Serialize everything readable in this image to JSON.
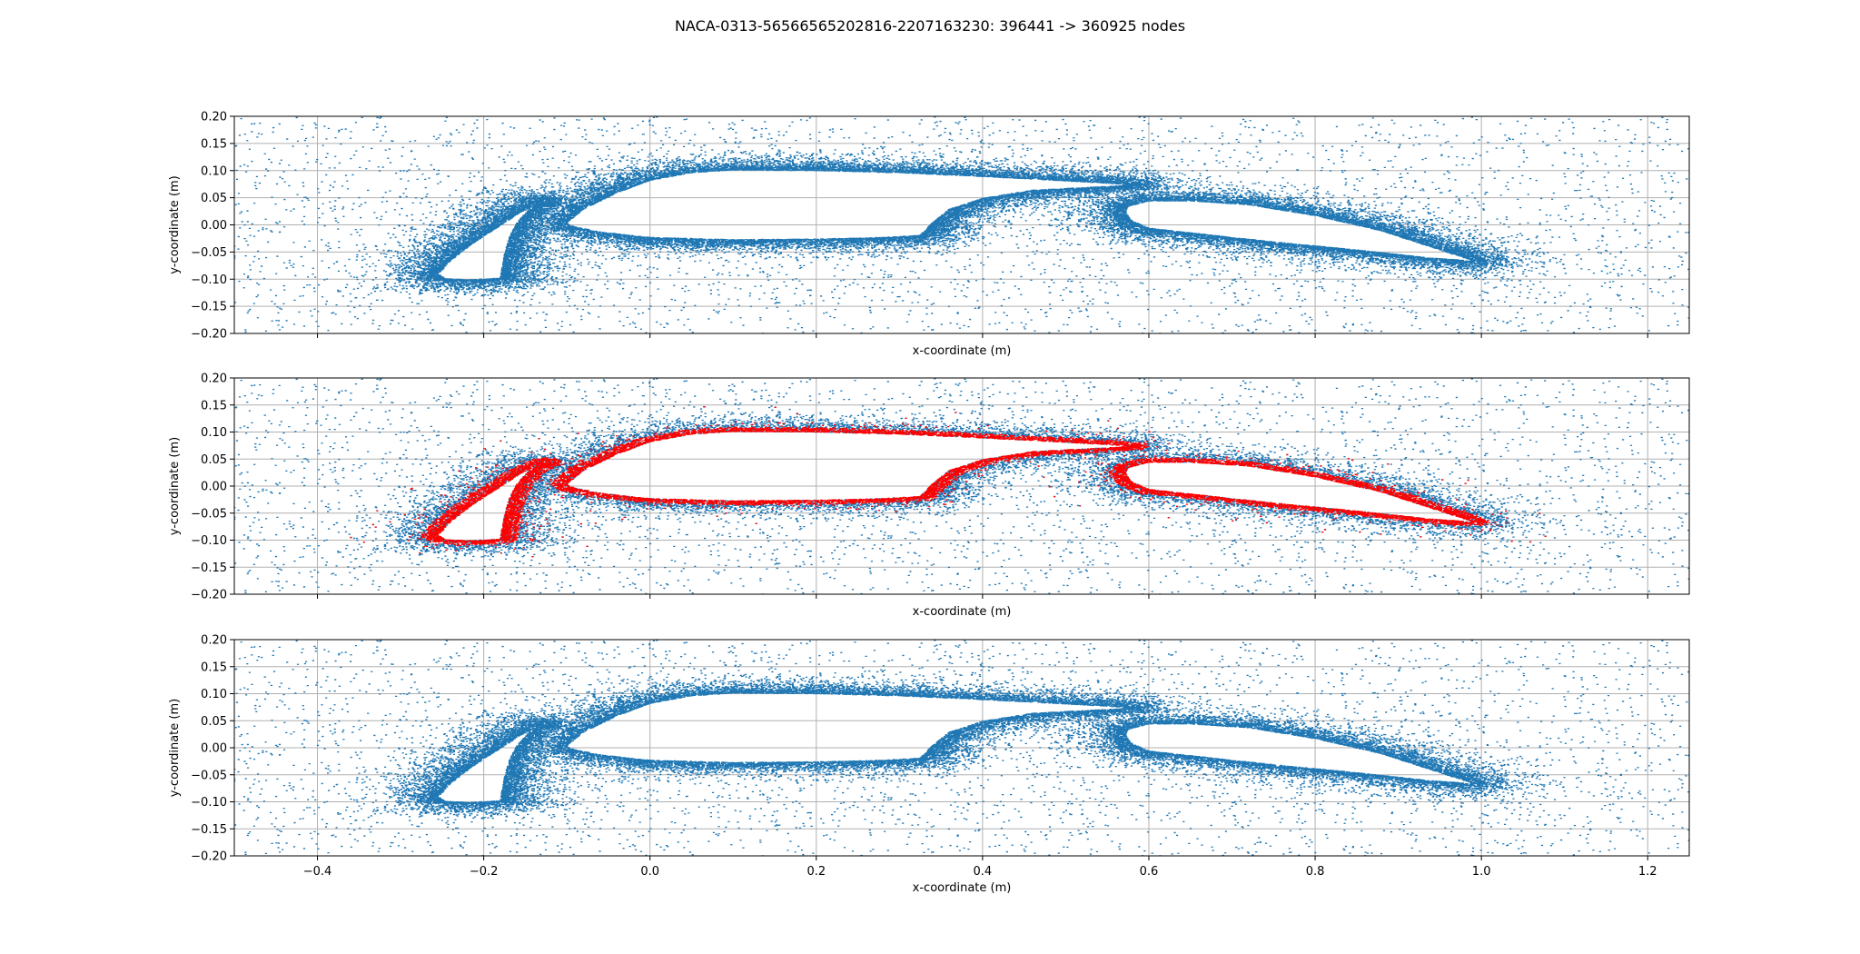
{
  "figure": {
    "title": "NACA-0313-56566565202816-2207163230: 396441 -> 360925 nodes"
  },
  "colors": {
    "points": "#1f77b4",
    "removed": "#ff0000",
    "grid": "#b0b0b0",
    "background": "#ffffff"
  },
  "chart_data": [
    {
      "type": "scatter",
      "panel": "original-mesh",
      "title": "",
      "xlabel": "x-coordinate (m)",
      "ylabel": "y-coordinate (m)",
      "xlim": [
        -0.5,
        1.25
      ],
      "ylim": [
        -0.2,
        0.2
      ],
      "xticks": [
        -0.4,
        -0.2,
        0.0,
        0.2,
        0.4,
        0.6,
        0.8,
        1.0,
        1.2
      ],
      "xtick_labels": [
        "−0.4",
        "−0.2",
        "0.0",
        "0.2",
        "0.4",
        "0.6",
        "0.8",
        "1.0",
        "1.2"
      ],
      "show_xtick_labels": false,
      "yticks": [
        -0.2,
        -0.15,
        -0.1,
        -0.05,
        0.0,
        0.05,
        0.1,
        0.15,
        0.2
      ],
      "ytick_labels": [
        "−0.20",
        "−0.15",
        "−0.10",
        "−0.05",
        "0.00",
        "0.05",
        "0.10",
        "0.15",
        "0.20"
      ],
      "grid": true,
      "series": [
        {
          "color": "#1f77b4",
          "marker": "dot"
        }
      ],
      "geometry": {
        "slat": [
          [
            -0.255,
            -0.09
          ],
          [
            -0.24,
            -0.065
          ],
          [
            -0.215,
            -0.035
          ],
          [
            -0.185,
            -0.005
          ],
          [
            -0.155,
            0.025
          ],
          [
            -0.125,
            0.045
          ],
          [
            -0.145,
            0.03
          ],
          [
            -0.16,
            0.005
          ],
          [
            -0.17,
            -0.025
          ],
          [
            -0.175,
            -0.055
          ],
          [
            -0.178,
            -0.08
          ],
          [
            -0.18,
            -0.097
          ],
          [
            -0.22,
            -0.1
          ],
          [
            -0.245,
            -0.098
          ]
        ],
        "main": [
          [
            -0.1,
            0.005
          ],
          [
            -0.08,
            0.03
          ],
          [
            -0.04,
            0.06
          ],
          [
            0.0,
            0.083
          ],
          [
            0.05,
            0.097
          ],
          [
            0.1,
            0.102
          ],
          [
            0.2,
            0.101
          ],
          [
            0.3,
            0.097
          ],
          [
            0.4,
            0.09
          ],
          [
            0.5,
            0.082
          ],
          [
            0.58,
            0.075
          ],
          [
            0.55,
            0.072
          ],
          [
            0.46,
            0.065
          ],
          [
            0.4,
            0.05
          ],
          [
            0.36,
            0.03
          ],
          [
            0.34,
            0.005
          ],
          [
            0.325,
            -0.018
          ],
          [
            0.28,
            -0.022
          ],
          [
            0.2,
            -0.025
          ],
          [
            0.1,
            -0.026
          ],
          [
            0.0,
            -0.022
          ],
          [
            -0.06,
            -0.012
          ],
          [
            -0.092,
            -0.002
          ]
        ],
        "flap": [
          [
            0.575,
            0.035
          ],
          [
            0.6,
            0.045
          ],
          [
            0.65,
            0.045
          ],
          [
            0.72,
            0.038
          ],
          [
            0.8,
            0.018
          ],
          [
            0.88,
            -0.01
          ],
          [
            0.94,
            -0.04
          ],
          [
            0.99,
            -0.065
          ],
          [
            0.94,
            -0.06
          ],
          [
            0.85,
            -0.045
          ],
          [
            0.75,
            -0.03
          ],
          [
            0.66,
            -0.015
          ],
          [
            0.6,
            -0.005
          ],
          [
            0.578,
            0.01
          ],
          [
            0.572,
            0.025
          ]
        ],
        "band_width": 0.045,
        "far_spacing": 0.02
      },
      "point_sets": {
        "background_points": 4200,
        "boundary_points": 26000
      }
    },
    {
      "type": "scatter",
      "panel": "removed-nodes",
      "title": "",
      "xlabel": "x-coordinate (m)",
      "ylabel": "y-coordinate (m)",
      "xlim": [
        -0.5,
        1.25
      ],
      "ylim": [
        -0.2,
        0.2
      ],
      "xticks": [
        -0.4,
        -0.2,
        0.0,
        0.2,
        0.4,
        0.6,
        0.8,
        1.0,
        1.2
      ],
      "xtick_labels": [
        "−0.4",
        "−0.2",
        "0.0",
        "0.2",
        "0.4",
        "0.6",
        "0.8",
        "1.0",
        "1.2"
      ],
      "show_xtick_labels": false,
      "yticks": [
        -0.2,
        -0.15,
        -0.1,
        -0.05,
        0.0,
        0.05,
        0.1,
        0.15,
        0.2
      ],
      "ytick_labels": [
        "−0.20",
        "−0.15",
        "−0.10",
        "−0.05",
        "0.00",
        "0.05",
        "0.10",
        "0.15",
        "0.20"
      ],
      "grid": true,
      "series": [
        {
          "color": "#1f77b4",
          "marker": "dot"
        },
        {
          "color": "#ff0000",
          "marker": "dot"
        }
      ],
      "point_sets": {
        "background_points": 4200,
        "boundary_points": 20000,
        "removed_points": 9000
      }
    },
    {
      "type": "scatter",
      "panel": "reduced-mesh",
      "title": "",
      "xlabel": "x-coordinate (m)",
      "ylabel": "y-coordinate (m)",
      "xlim": [
        -0.5,
        1.25
      ],
      "ylim": [
        -0.2,
        0.2
      ],
      "xticks": [
        -0.4,
        -0.2,
        0.0,
        0.2,
        0.4,
        0.6,
        0.8,
        1.0,
        1.2
      ],
      "xtick_labels": [
        "−0.4",
        "−0.2",
        "0.0",
        "0.2",
        "0.4",
        "0.6",
        "0.8",
        "1.0",
        "1.2"
      ],
      "show_xtick_labels": true,
      "yticks": [
        -0.2,
        -0.15,
        -0.1,
        -0.05,
        0.0,
        0.05,
        0.1,
        0.15,
        0.2
      ],
      "ytick_labels": [
        "−0.20",
        "−0.15",
        "−0.10",
        "−0.05",
        "0.00",
        "0.05",
        "0.10",
        "0.15",
        "0.20"
      ],
      "grid": true,
      "series": [
        {
          "color": "#1f77b4",
          "marker": "dot"
        }
      ],
      "point_sets": {
        "background_points": 4200,
        "boundary_points": 23000
      }
    }
  ]
}
